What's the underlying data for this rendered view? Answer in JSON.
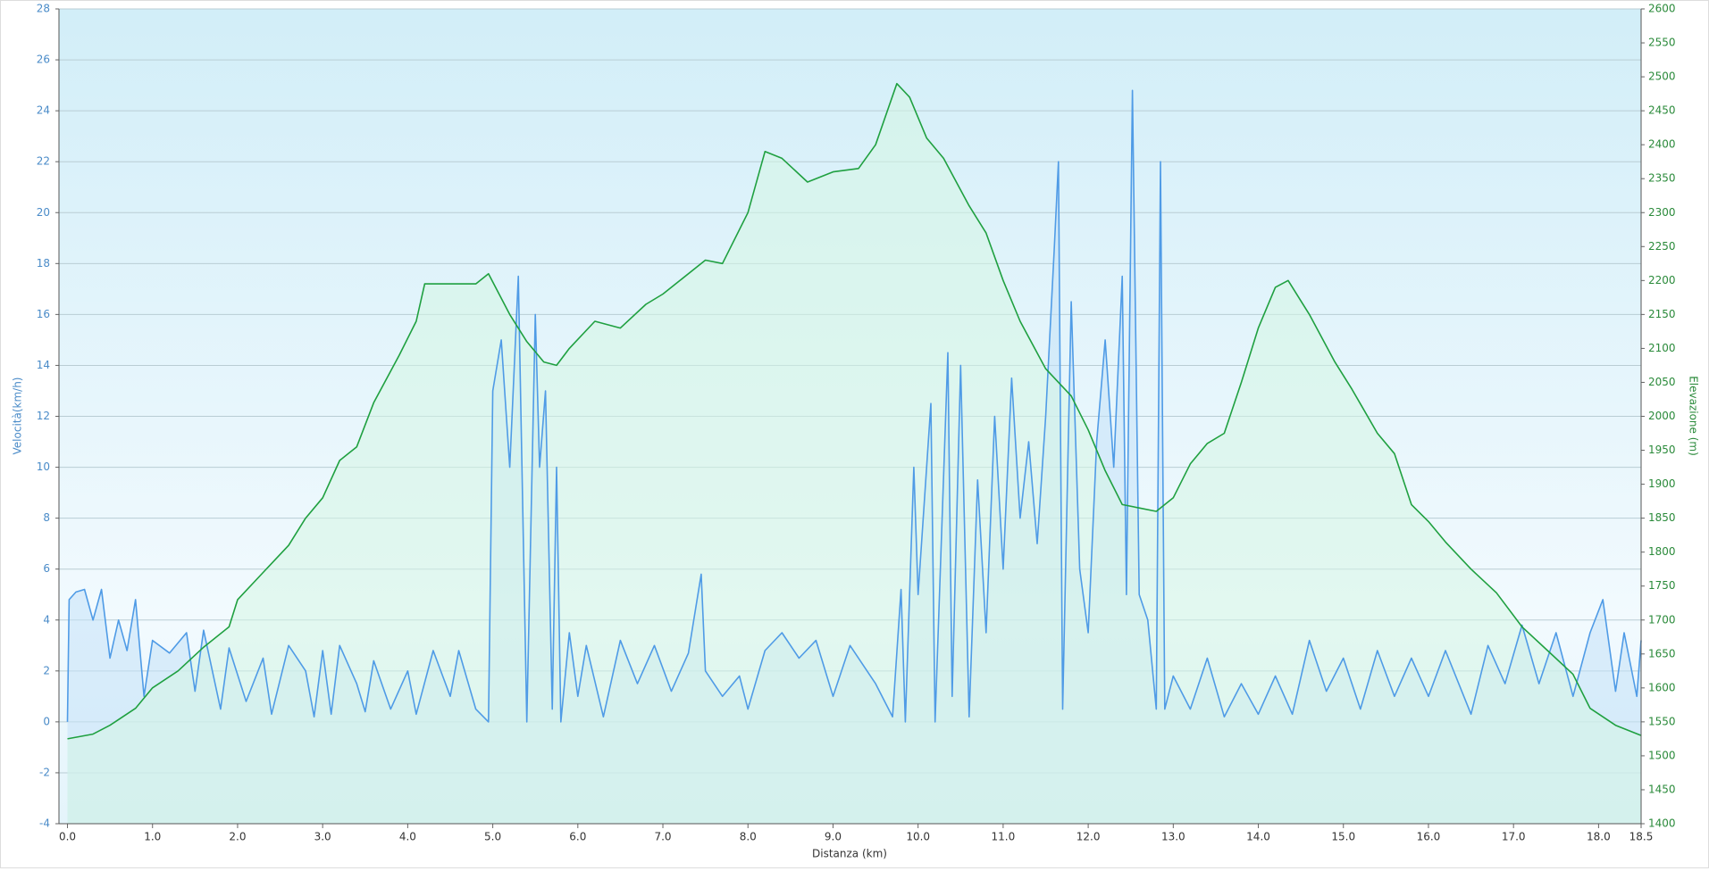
{
  "chart_data": {
    "type": "line",
    "x_label": "Distanza  (km)",
    "y_label": "Velocità(km/h)",
    "y2_label": "Elevazione (m)",
    "xlim": [
      -0.1,
      18.5
    ],
    "xticks": [
      {
        "value": 0,
        "label": "0.0"
      },
      {
        "value": 1,
        "label": "1.0"
      },
      {
        "value": 2,
        "label": "2.0"
      },
      {
        "value": 3,
        "label": "3.0"
      },
      {
        "value": 4,
        "label": "4.0"
      },
      {
        "value": 5,
        "label": "5.0"
      },
      {
        "value": 6,
        "label": "6.0"
      },
      {
        "value": 7,
        "label": "7.0"
      },
      {
        "value": 8,
        "label": "8.0"
      },
      {
        "value": 9,
        "label": "9.0"
      },
      {
        "value": 10,
        "label": "10.0"
      },
      {
        "value": 11,
        "label": "11.0"
      },
      {
        "value": 12,
        "label": "12.0"
      },
      {
        "value": 13,
        "label": "13.0"
      },
      {
        "value": 14,
        "label": "14.0"
      },
      {
        "value": 15,
        "label": "15.0"
      },
      {
        "value": 16,
        "label": "16.0"
      },
      {
        "value": 17,
        "label": "17.0"
      },
      {
        "value": 18,
        "label": "18.0"
      },
      18.5
    ],
    "ylim": [
      -4,
      28
    ],
    "yticks": [
      -4,
      -2,
      0,
      2,
      4,
      6,
      8,
      10,
      12,
      14,
      16,
      18,
      20,
      22,
      24,
      26,
      28
    ],
    "y2lim": [
      1400,
      2600
    ],
    "y2ticks": [
      1400,
      1450,
      1500,
      1550,
      1600,
      1650,
      1700,
      1750,
      1800,
      1850,
      1900,
      1950,
      2000,
      2050,
      2100,
      2150,
      2200,
      2250,
      2300,
      2350,
      2400,
      2450,
      2500,
      2550,
      2600
    ],
    "grid": true,
    "series": [
      {
        "name": "Velocità",
        "color": "#4f9be6",
        "fill": "#c5e2f7",
        "x": [
          0,
          0.02,
          0.1,
          0.2,
          0.3,
          0.4,
          0.5,
          0.6,
          0.7,
          0.8,
          0.9,
          1.0,
          1.2,
          1.4,
          1.5,
          1.6,
          1.8,
          1.9,
          2.1,
          2.3,
          2.4,
          2.6,
          2.8,
          2.9,
          3.0,
          3.1,
          3.2,
          3.4,
          3.5,
          3.6,
          3.8,
          4.0,
          4.1,
          4.3,
          4.5,
          4.6,
          4.8,
          4.95,
          5.0,
          5.1,
          5.2,
          5.3,
          5.4,
          5.5,
          5.55,
          5.62,
          5.7,
          5.75,
          5.8,
          5.9,
          6.0,
          6.1,
          6.3,
          6.5,
          6.7,
          6.9,
          7.1,
          7.3,
          7.45,
          7.5,
          7.7,
          7.9,
          8.0,
          8.2,
          8.4,
          8.6,
          8.8,
          9.0,
          9.2,
          9.5,
          9.7,
          9.8,
          9.85,
          9.95,
          10.0,
          10.15,
          10.2,
          10.35,
          10.4,
          10.5,
          10.6,
          10.7,
          10.8,
          10.9,
          11.0,
          11.1,
          11.2,
          11.3,
          11.4,
          11.5,
          11.6,
          11.65,
          11.7,
          11.8,
          11.9,
          12.0,
          12.1,
          12.2,
          12.3,
          12.4,
          12.45,
          12.52,
          12.6,
          12.7,
          12.8,
          12.85,
          12.9,
          13.0,
          13.2,
          13.4,
          13.6,
          13.8,
          14.0,
          14.2,
          14.4,
          14.6,
          14.8,
          15.0,
          15.2,
          15.4,
          15.6,
          15.8,
          16.0,
          16.2,
          16.5,
          16.7,
          16.9,
          17.1,
          17.3,
          17.5,
          17.7,
          17.9,
          18.05,
          18.2,
          18.3,
          18.45,
          18.5
        ],
        "values": [
          0,
          4.8,
          5.1,
          5.2,
          4.0,
          5.2,
          2.5,
          4.0,
          2.8,
          4.8,
          1.0,
          3.2,
          2.7,
          3.5,
          1.2,
          3.6,
          0.5,
          2.9,
          0.8,
          2.5,
          0.3,
          3.0,
          2.0,
          0.2,
          2.8,
          0.3,
          3.0,
          1.5,
          0.4,
          2.4,
          0.5,
          2.0,
          0.3,
          2.8,
          1.0,
          2.8,
          0.5,
          0,
          13,
          15,
          10,
          17.5,
          0,
          16,
          10,
          13,
          0.5,
          10,
          0,
          3.5,
          1.0,
          3.0,
          0.2,
          3.2,
          1.5,
          3.0,
          1.2,
          2.7,
          5.8,
          2.0,
          1.0,
          1.8,
          0.5,
          2.8,
          3.5,
          2.5,
          3.2,
          1.0,
          3.0,
          1.5,
          0.2,
          5.2,
          0,
          10,
          5.0,
          12.5,
          0,
          14.5,
          1.0,
          14,
          0.2,
          9.5,
          3.5,
          12,
          6,
          13.5,
          8,
          11,
          7,
          12,
          18.5,
          22,
          0.5,
          16.5,
          6,
          3.5,
          11,
          15,
          10,
          17.5,
          5,
          24.8,
          5,
          4,
          0.5,
          22,
          0.5,
          1.8,
          0.5,
          2.5,
          0.2,
          1.5,
          0.3,
          1.8,
          0.3,
          3.2,
          1.2,
          2.5,
          0.5,
          2.8,
          1.0,
          2.5,
          1.0,
          2.8,
          0.3,
          3.0,
          1.5,
          3.8,
          1.5,
          3.5,
          1.0,
          3.5,
          4.8,
          1.2,
          3.5,
          1.0,
          3.2
        ]
      },
      {
        "name": "Elevazione",
        "color": "#1fa040",
        "fill": "#d6f5e4",
        "axis": "y2",
        "x": [
          0,
          0.3,
          0.5,
          0.8,
          1.0,
          1.3,
          1.6,
          1.9,
          2.0,
          2.3,
          2.6,
          2.8,
          3.0,
          3.2,
          3.4,
          3.6,
          3.9,
          4.1,
          4.2,
          4.5,
          4.8,
          4.95,
          5.2,
          5.4,
          5.6,
          5.75,
          5.9,
          6.2,
          6.5,
          6.8,
          7.0,
          7.2,
          7.5,
          7.7,
          8.0,
          8.2,
          8.4,
          8.7,
          9.0,
          9.3,
          9.5,
          9.75,
          9.9,
          10.1,
          10.3,
          10.6,
          10.8,
          11.0,
          11.2,
          11.5,
          11.8,
          12.0,
          12.2,
          12.4,
          12.6,
          12.8,
          13.0,
          13.2,
          13.4,
          13.6,
          13.8,
          14.0,
          14.2,
          14.35,
          14.6,
          14.9,
          15.1,
          15.4,
          15.6,
          15.8,
          16.0,
          16.2,
          16.5,
          16.8,
          17.1,
          17.4,
          17.7,
          17.9,
          18.2,
          18.5
        ],
        "values": [
          1525,
          1532,
          1545,
          1570,
          1600,
          1625,
          1660,
          1690,
          1730,
          1770,
          1810,
          1850,
          1880,
          1935,
          1955,
          2020,
          2090,
          2140,
          2195,
          2195,
          2195,
          2210,
          2150,
          2110,
          2080,
          2075,
          2100,
          2140,
          2130,
          2165,
          2180,
          2200,
          2230,
          2225,
          2300,
          2390,
          2380,
          2345,
          2360,
          2365,
          2400,
          2490,
          2470,
          2410,
          2380,
          2310,
          2270,
          2200,
          2140,
          2070,
          2030,
          1980,
          1920,
          1870,
          1865,
          1860,
          1880,
          1930,
          1960,
          1975,
          2050,
          2130,
          2190,
          2200,
          2150,
          2080,
          2040,
          1975,
          1945,
          1870,
          1845,
          1815,
          1775,
          1740,
          1690,
          1655,
          1620,
          1570,
          1545,
          1530
        ]
      }
    ]
  }
}
